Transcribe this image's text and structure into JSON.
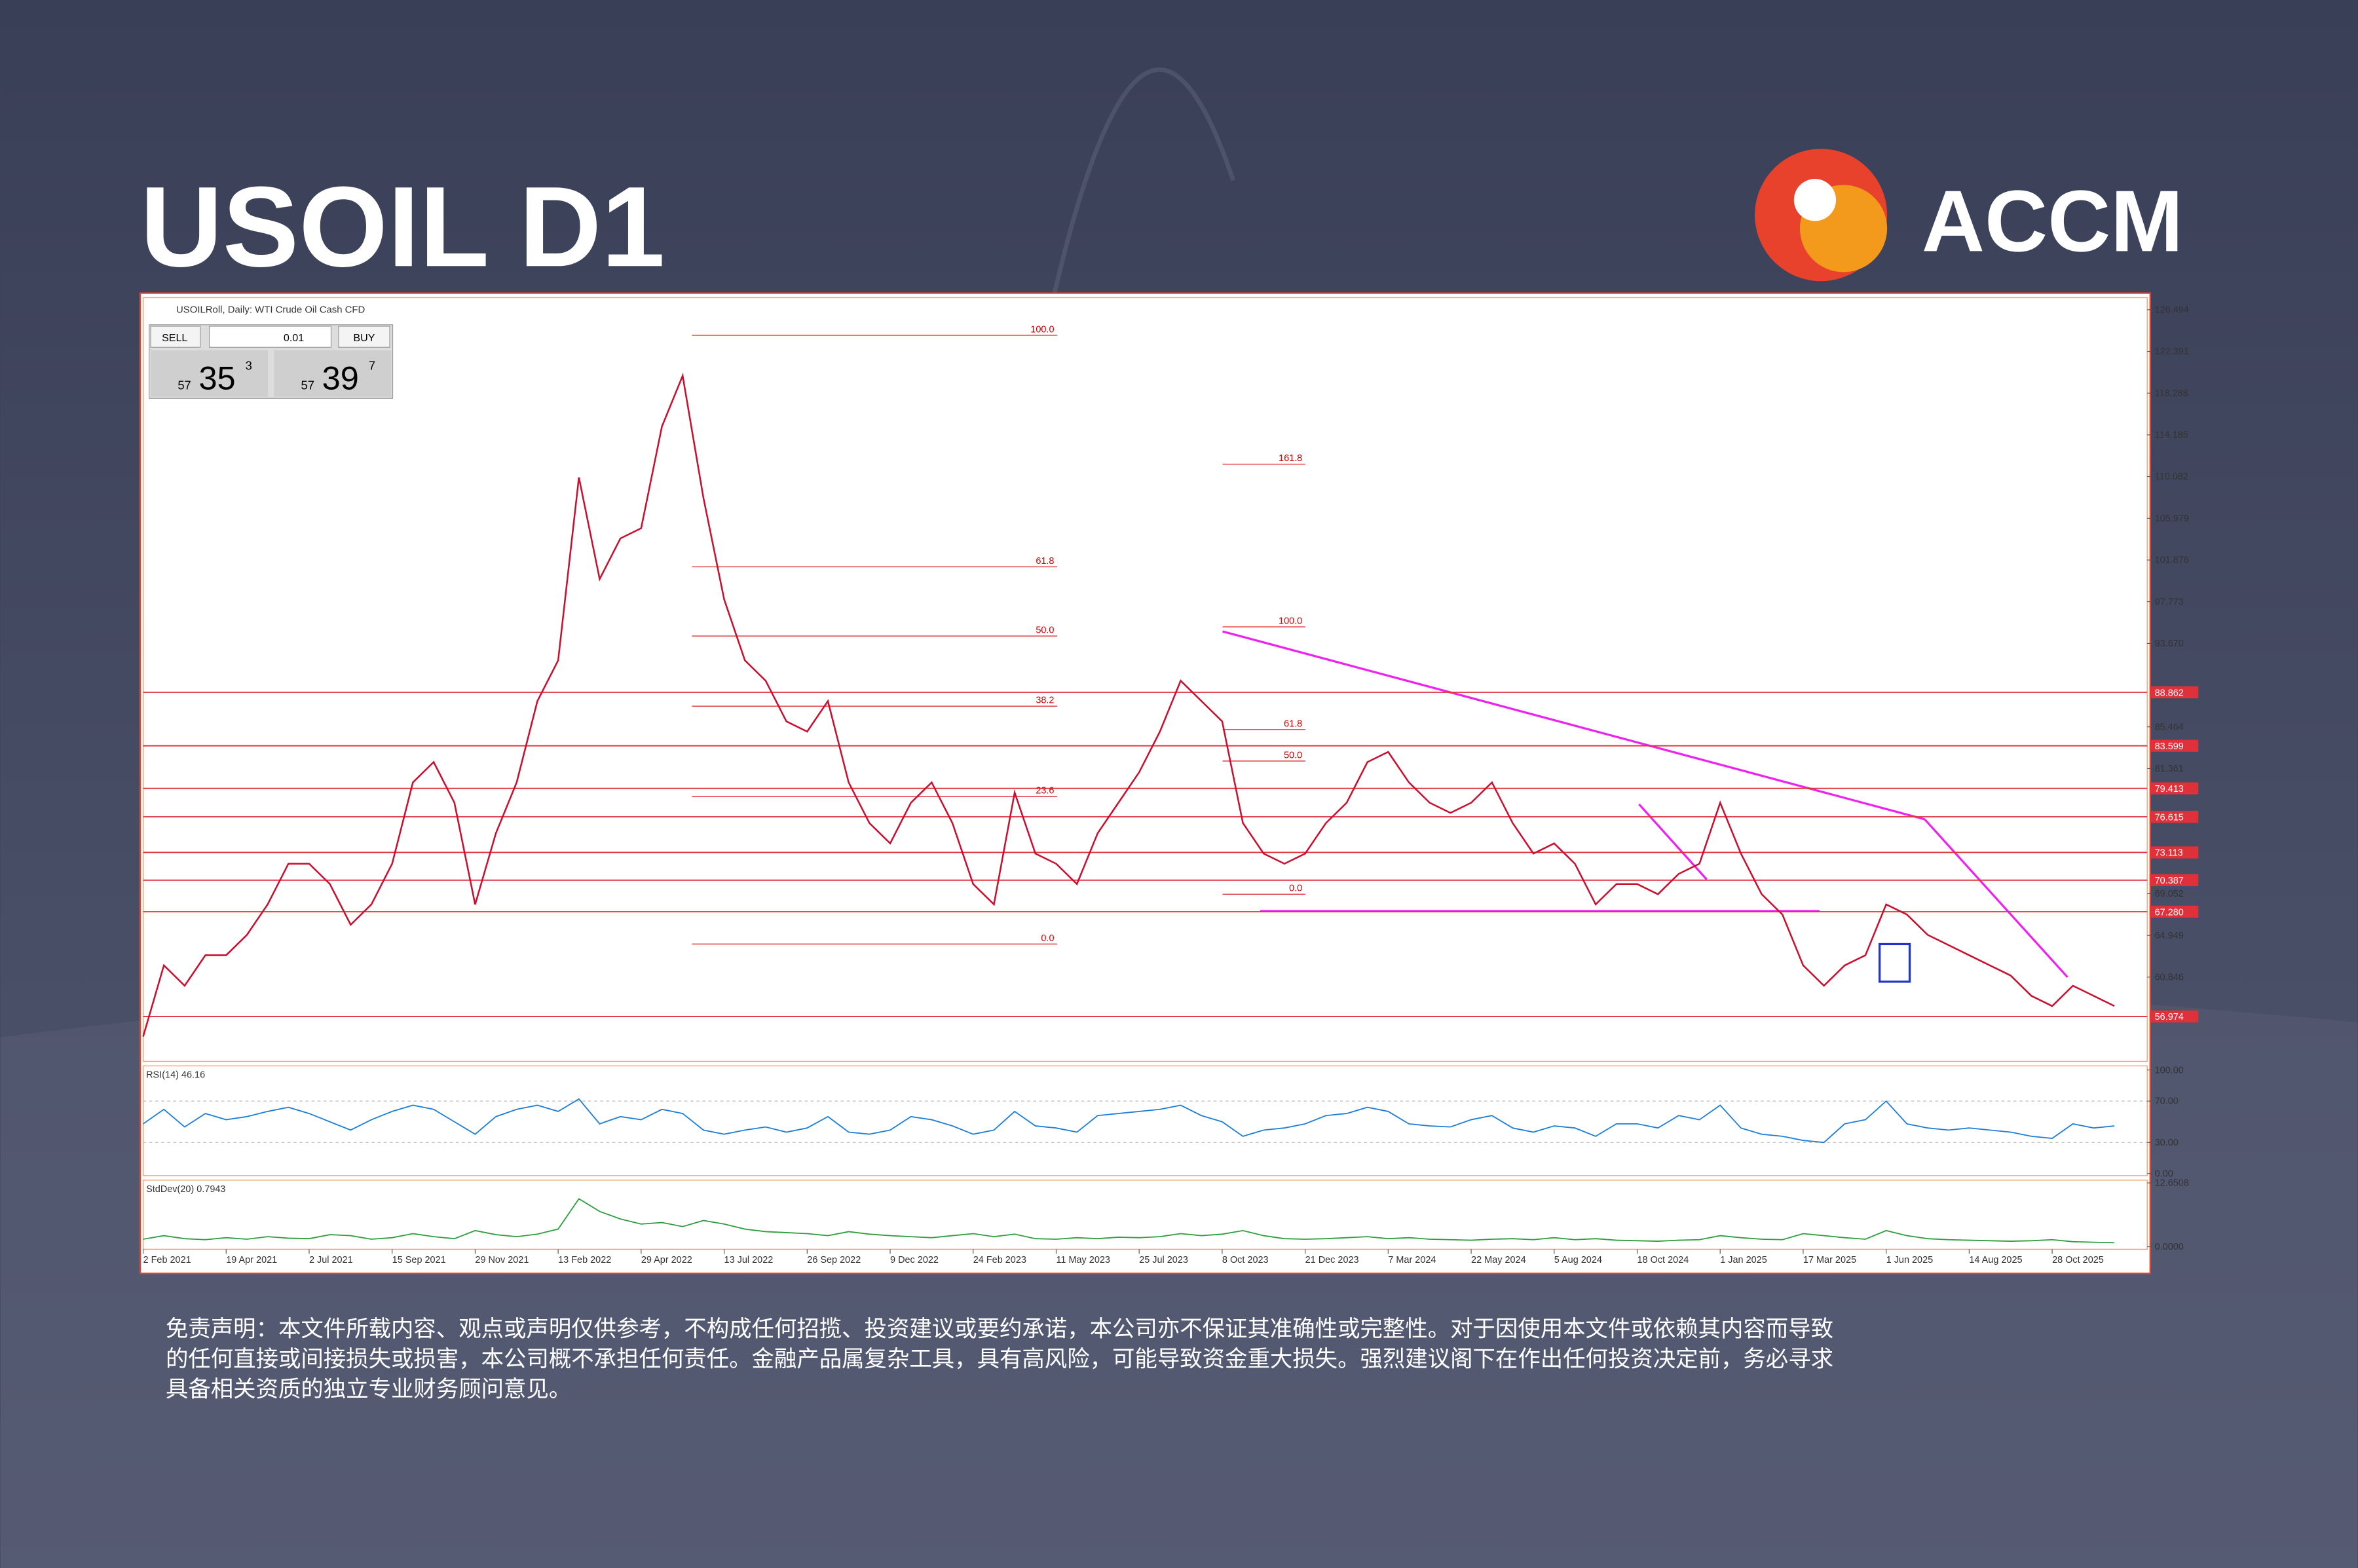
{
  "header": {
    "title": "USOIL D1",
    "brand": "ACCM"
  },
  "terminal": {
    "caption": "USOILRoll, Daily: WTI Crude Oil Cash CFD",
    "sell": "SELL",
    "buy": "BUY",
    "lot": "0.01",
    "bid": {
      "big": "57",
      "main": "35",
      "small": "3"
    },
    "ask": {
      "big": "57",
      "main": "39",
      "small": "7"
    }
  },
  "chart_data": [
    {
      "type": "line",
      "color": "#c8102e",
      "xlim": [
        0,
        96
      ],
      "ylim": [
        52.56,
        127.68
      ],
      "yticks": [
        {
          "value": 126.494,
          "label": "126.494"
        },
        {
          "value": 122.391,
          "label": "122.391"
        },
        {
          "value": 118.288,
          "label": "118.288"
        },
        {
          "value": 114.185,
          "label": "114.185"
        },
        {
          "value": 110.082,
          "label": "110.082"
        },
        {
          "value": 105.979,
          "label": "105.979"
        },
        {
          "value": 101.876,
          "label": "101.876"
        },
        {
          "value": 97.773,
          "label": "97.773"
        },
        {
          "value": 93.67,
          "label": "93.670"
        },
        {
          "value": 85.464,
          "label": "85.464"
        },
        {
          "value": 81.361,
          "label": "81.361"
        },
        {
          "value": 69.052,
          "label": "69.052"
        },
        {
          "value": 64.949,
          "label": "64.949"
        },
        {
          "value": 60.846,
          "label": "60.846"
        }
      ],
      "levels": [
        {
          "value": 88.862,
          "label": "88.862"
        },
        {
          "value": 83.599,
          "label": "83.599"
        },
        {
          "value": 79.413,
          "label": "79.413"
        },
        {
          "value": 76.615,
          "label": "76.615"
        },
        {
          "value": 73.113,
          "label": "73.113"
        },
        {
          "value": 70.387,
          "label": "70.387"
        },
        {
          "value": 67.28,
          "label": "67.280"
        },
        {
          "value": 56.974,
          "label": "56.974"
        }
      ],
      "fibonacci": [
        [
          {
            "value": 123.98,
            "label": "100.0"
          },
          {
            "value": 101.2,
            "label": "61.8"
          },
          {
            "value": 94.4,
            "label": "50.0"
          },
          {
            "value": 87.5,
            "label": "38.2"
          },
          {
            "value": 78.6,
            "label": "23.6"
          },
          {
            "value": 64.1,
            "label": "0.0"
          }
        ],
        [
          {
            "value": 111.3,
            "label": "161.8"
          },
          {
            "value": 95.3,
            "label": "100.0"
          },
          {
            "value": 85.2,
            "label": "61.8"
          },
          {
            "value": 82.1,
            "label": "50.0"
          },
          {
            "value": 69.0,
            "label": "0.0"
          }
        ]
      ],
      "xticks": [
        {
          "value": 0,
          "label": "2 Feb 2021"
        },
        {
          "value": 4,
          "label": "19 Apr 2021"
        },
        {
          "value": 8,
          "label": "2 Jul 2021"
        },
        {
          "value": 12,
          "label": "15 Sep 2021"
        },
        {
          "value": 16,
          "label": "29 Nov 2021"
        },
        {
          "value": 20,
          "label": "13 Feb 2022"
        },
        {
          "value": 24,
          "label": "29 Apr 2022"
        },
        {
          "value": 28,
          "label": "13 Jul 2022"
        },
        {
          "value": 32,
          "label": "26 Sep 2022"
        },
        {
          "value": 36,
          "label": "9 Dec 2022"
        },
        {
          "value": 40,
          "label": "24 Feb 2023"
        },
        {
          "value": 44,
          "label": "11 May 2023"
        },
        {
          "value": 48,
          "label": "25 Jul 2023"
        },
        {
          "value": 52,
          "label": "8 Oct 2023"
        },
        {
          "value": 56,
          "label": "21 Dec 2023"
        },
        {
          "value": 60,
          "label": "7 Mar 2024"
        },
        {
          "value": 64,
          "label": "22 May 2024"
        },
        {
          "value": 68,
          "label": "5 Aug 2024"
        },
        {
          "value": 72,
          "label": "18 Oct 2024"
        },
        {
          "value": 76,
          "label": "1 Jan 2025"
        },
        {
          "value": 80,
          "label": "17 Mar 2025"
        },
        {
          "value": 84,
          "label": "1 Jun 2025"
        },
        {
          "value": 88,
          "label": "14 Aug 2025"
        },
        {
          "value": 92,
          "label": "28 Oct 2025"
        }
      ],
      "values": [
        55,
        62,
        60,
        63,
        63,
        65,
        68,
        72,
        72,
        70,
        66,
        68,
        72,
        80,
        82,
        78,
        68,
        75,
        80,
        88,
        92,
        110,
        100,
        104,
        105,
        115,
        120,
        108,
        98,
        92,
        90,
        86,
        85,
        88,
        80,
        76,
        74,
        78,
        80,
        76,
        70,
        68,
        79,
        73,
        72,
        70,
        75,
        78,
        81,
        85,
        90,
        88,
        86,
        76,
        73,
        72,
        73,
        76,
        78,
        82,
        83,
        80,
        78,
        77,
        78,
        80,
        76,
        73,
        74,
        72,
        68,
        70,
        70,
        69,
        71,
        72,
        78,
        73,
        69,
        67,
        62,
        60,
        62,
        63,
        68,
        67,
        65,
        64,
        63,
        62,
        61,
        59,
        58,
        60,
        59,
        58
      ]
    },
    {
      "type": "line",
      "title": "RSI(14) 46.16",
      "color": "#1e7fd8",
      "xlim": [
        0,
        96
      ],
      "ylim": [
        -2,
        104
      ],
      "yticks": [
        {
          "value": 100,
          "label": "100.00"
        },
        {
          "value": 70,
          "label": "70.00"
        },
        {
          "value": 30,
          "label": "30.00"
        },
        {
          "value": 0,
          "label": "0.00"
        }
      ],
      "values": [
        48,
        62,
        45,
        58,
        52,
        55,
        60,
        64,
        58,
        50,
        42,
        52,
        60,
        66,
        62,
        50,
        38,
        55,
        62,
        66,
        60,
        72,
        48,
        55,
        52,
        62,
        58,
        42,
        38,
        42,
        45,
        40,
        44,
        55,
        40,
        38,
        42,
        55,
        52,
        46,
        38,
        42,
        60,
        46,
        44,
        40,
        56,
        58,
        60,
        62,
        66,
        56,
        50,
        36,
        42,
        44,
        48,
        56,
        58,
        64,
        60,
        48,
        46,
        45,
        52,
        56,
        44,
        40,
        46,
        44,
        36,
        48,
        48,
        44,
        56,
        52,
        66,
        44,
        38,
        36,
        32,
        30,
        48,
        52,
        70,
        48,
        44,
        42,
        44,
        42,
        40,
        36,
        34,
        48,
        44,
        46
      ]
    },
    {
      "type": "line",
      "title": "StdDev(20) 0.7943",
      "color": "#2e9e3e",
      "xlim": [
        0,
        96
      ],
      "ylim": [
        -0.5,
        13.2
      ],
      "yticks": [
        {
          "value": 12.6508,
          "label": "12.6508"
        },
        {
          "value": 0,
          "label": "0.0000"
        }
      ],
      "values": [
        1.5,
        2.2,
        1.6,
        1.4,
        1.8,
        1.5,
        2,
        1.7,
        1.6,
        2.4,
        2.2,
        1.5,
        1.8,
        2.6,
        2,
        1.6,
        3.2,
        2.4,
        2,
        2.5,
        3.5,
        9.5,
        7,
        5.5,
        4.5,
        4.8,
        4,
        5.2,
        4.5,
        3.5,
        3,
        2.8,
        2.6,
        2.2,
        3,
        2.5,
        2.2,
        2,
        1.8,
        2.2,
        2.6,
        2,
        2.5,
        1.6,
        1.5,
        1.8,
        1.6,
        1.9,
        1.8,
        2,
        2.6,
        2.2,
        2.5,
        3.2,
        2.2,
        1.6,
        1.5,
        1.6,
        1.8,
        2,
        1.6,
        1.8,
        1.5,
        1.4,
        1.3,
        1.5,
        1.6,
        1.4,
        1.8,
        1.4,
        1.6,
        1.3,
        1.2,
        1.1,
        1.3,
        1.4,
        2.2,
        1.8,
        1.5,
        1.4,
        2.6,
        2.2,
        1.8,
        1.5,
        3.2,
        2.2,
        1.6,
        1.4,
        1.3,
        1.2,
        1.1,
        1.2,
        1.4,
        1,
        0.9,
        0.8
      ]
    }
  ],
  "disclaimer": [
    "免责声明：本文件所载内容、观点或声明仅供参考，不构成任何招揽、投资建议或要约承诺，本公司亦不保证其准确性或完整性。对于因使用本文件或依赖其内容而导致",
    "的任何直接或间接损失或损害，本公司概不承担任何责任。金融产品属复杂工具，具有高风险，可能导致资金重大损失。强烈建议阁下在作出任何投资决定前，务必寻求",
    "具备相关资质的独立专业财务顾问意见。"
  ]
}
